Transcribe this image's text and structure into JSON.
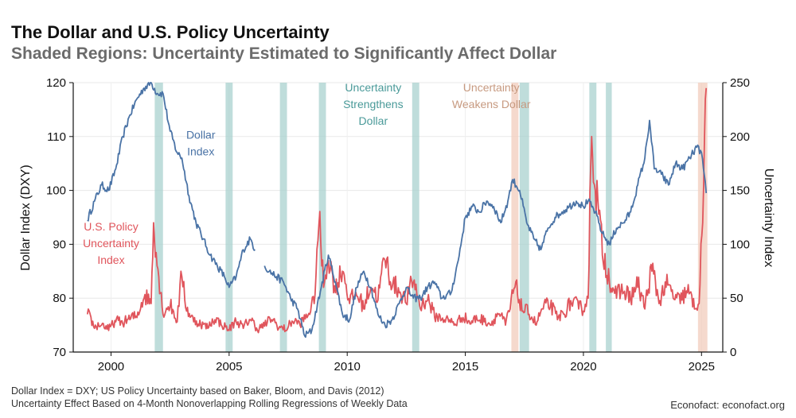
{
  "title": "The Dollar and U.S. Policy Uncertainty",
  "subtitle": "Shaded Regions: Uncertainty Estimated to Significantly Affect Dollar",
  "footnote_1": "Dollar Index = DXY; US Policy Uncertainty based on Baker, Bloom, and Davis (2012)",
  "footnote_2": "Uncertainty Effect Based on 4-Month Nonoverlapping Rolling Regressions of Weekly Data",
  "credit": "Econofact: econofact.org",
  "colors": {
    "dollar": "#4a73a6",
    "uncertainty": "#e0555c",
    "strengthens": "#a9d2cf",
    "weakens": "#f2cfc0",
    "annotation_strengthens": "#4a9a99",
    "annotation_weakens": "#c79a80"
  },
  "chart_data": {
    "type": "line",
    "xlim": [
      1998.4,
      2025.9
    ],
    "x_ticks": [
      2000,
      2005,
      2010,
      2015,
      2020,
      2025
    ],
    "x_tick_labels": [
      "2000",
      "2005",
      "2010",
      "2015",
      "2020",
      "2025"
    ],
    "y_left": {
      "label": "Dollar Index (DXY)",
      "lim": [
        70,
        120
      ],
      "ticks": [
        70,
        80,
        90,
        100,
        110,
        120
      ]
    },
    "y_right": {
      "label": "Uncertainty Index",
      "lim": [
        0,
        250
      ],
      "ticks": [
        0,
        50,
        100,
        150,
        200,
        250
      ]
    },
    "annotations": [
      {
        "id": "dollar",
        "lines": [
          "Dollar",
          "Index"
        ],
        "color_key": "dollar",
        "x": 2003.8,
        "y_left": 109.6
      },
      {
        "id": "uncertainty",
        "lines": [
          "U.S. Policy",
          "Uncertainty",
          "Index"
        ],
        "color_key": "uncertainty",
        "x": 2000.0,
        "y_left": 92.6
      },
      {
        "id": "strengthens",
        "lines": [
          "Uncertainty",
          "Strengthens",
          "Dollar"
        ],
        "color_key": "annotation_strengthens",
        "x": 2011.1,
        "y_left": 118.4
      },
      {
        "id": "weakens",
        "lines": [
          "Uncertainty",
          "Weakens Dollar"
        ],
        "color_key": "annotation_weakens",
        "x": 2016.1,
        "y_left": 118.4
      }
    ],
    "shaded_regions": {
      "strengthens": [
        [
          2001.85,
          2002.2
        ],
        [
          2004.85,
          2005.15
        ],
        [
          2007.15,
          2007.45
        ],
        [
          2008.8,
          2009.1
        ],
        [
          2012.75,
          2013.05
        ],
        [
          2017.3,
          2017.7
        ],
        [
          2020.25,
          2020.55
        ],
        [
          2020.95,
          2021.2
        ]
      ],
      "weakens": [
        [
          2016.95,
          2017.25
        ],
        [
          2024.85,
          2025.25
        ]
      ]
    },
    "series": [
      {
        "name": "Dollar Index",
        "axis": "left",
        "color_key": "dollar",
        "x": [
          1999.0,
          1999.3,
          1999.6,
          1999.9,
          2000.2,
          2000.5,
          2000.8,
          2001.1,
          2001.4,
          2001.7,
          2001.95,
          2002.2,
          2002.5,
          2002.8,
          2003.0,
          2003.3,
          2003.6,
          2003.9,
          2004.2,
          2004.5,
          2004.8,
          2005.0,
          2005.3,
          2005.6,
          2005.9,
          2006.1,
          2006.3,
          2006.5,
          2006.7,
          2007.0,
          2007.3,
          2007.6,
          2007.9,
          2008.2,
          2008.5,
          2008.9,
          2009.2,
          2009.5,
          2009.8,
          2010.1,
          2010.4,
          2010.7,
          2011.0,
          2011.3,
          2011.6,
          2011.9,
          2012.2,
          2012.5,
          2012.8,
          2013.1,
          2013.4,
          2013.7,
          2014.0,
          2014.4,
          2014.7,
          2015.0,
          2015.3,
          2015.6,
          2015.9,
          2016.2,
          2016.5,
          2016.8,
          2017.0,
          2017.3,
          2017.6,
          2017.9,
          2018.2,
          2018.5,
          2018.8,
          2019.1,
          2019.4,
          2019.7,
          2020.0,
          2020.2,
          2020.5,
          2020.8,
          2021.1,
          2021.4,
          2021.7,
          2022.0,
          2022.3,
          2022.6,
          2022.8,
          2023.0,
          2023.3,
          2023.6,
          2023.9,
          2024.2,
          2024.5,
          2024.8,
          2025.0,
          2025.2
        ],
        "values": [
          94.5,
          98,
          101,
          100,
          104,
          110,
          114,
          117,
          119,
          120,
          118,
          118,
          111,
          107,
          106,
          99,
          94,
          91,
          88,
          86,
          84,
          82,
          84,
          89,
          91,
          89,
          null,
          86,
          85,
          84,
          83,
          80,
          78,
          73,
          74,
          82,
          88,
          83,
          77,
          76,
          82,
          85,
          82,
          77,
          75,
          76,
          79,
          82,
          80,
          80,
          82,
          83,
          80,
          81,
          87,
          95,
          97,
          96,
          98,
          97,
          94,
          98,
          102,
          100,
          94,
          91,
          89,
          93,
          95,
          96,
          97,
          98,
          97,
          98,
          96,
          92,
          90,
          93,
          94,
          96,
          101,
          106,
          113,
          104,
          103,
          101,
          105,
          104,
          106,
          108,
          107,
          99.5
        ]
      },
      {
        "name": "U.S. Policy Uncertainty Index",
        "axis": "right",
        "color_key": "uncertainty",
        "x": [
          1999.0,
          1999.3,
          1999.6,
          1999.9,
          2000.2,
          2000.5,
          2000.8,
          2001.1,
          2001.4,
          2001.7,
          2001.8,
          2001.95,
          2002.2,
          2002.5,
          2002.8,
          2003.0,
          2003.2,
          2003.5,
          2003.8,
          2004.1,
          2004.4,
          2004.7,
          2005.0,
          2005.3,
          2005.6,
          2005.9,
          2006.2,
          2006.5,
          2006.8,
          2007.1,
          2007.4,
          2007.7,
          2008.0,
          2008.3,
          2008.6,
          2008.8,
          2009.0,
          2009.2,
          2009.5,
          2009.8,
          2010.1,
          2010.4,
          2010.7,
          2011.0,
          2011.3,
          2011.6,
          2011.9,
          2012.2,
          2012.5,
          2012.8,
          2013.1,
          2013.4,
          2013.7,
          2014.0,
          2014.3,
          2014.6,
          2014.9,
          2015.2,
          2015.5,
          2015.8,
          2016.1,
          2016.4,
          2016.7,
          2016.9,
          2017.1,
          2017.4,
          2017.7,
          2018.0,
          2018.3,
          2018.6,
          2018.9,
          2019.2,
          2019.5,
          2019.8,
          2020.0,
          2020.2,
          2020.35,
          2020.5,
          2020.8,
          2021.1,
          2021.4,
          2021.7,
          2022.0,
          2022.3,
          2022.6,
          2022.9,
          2023.2,
          2023.5,
          2023.8,
          2024.1,
          2024.4,
          2024.7,
          2024.9,
          2025.05,
          2025.2
        ],
        "values": [
          35,
          22,
          25,
          20,
          28,
          26,
          30,
          32,
          50,
          45,
          120,
          80,
          35,
          42,
          28,
          70,
          38,
          28,
          25,
          22,
          30,
          24,
          20,
          28,
          22,
          30,
          20,
          24,
          30,
          22,
          20,
          28,
          25,
          32,
          45,
          118,
          60,
          85,
          55,
          75,
          45,
          52,
          40,
          60,
          48,
          85,
          60,
          55,
          45,
          65,
          40,
          48,
          32,
          30,
          28,
          25,
          32,
          26,
          30,
          28,
          25,
          35,
          25,
          40,
          60,
          38,
          35,
          25,
          40,
          42,
          30,
          35,
          45,
          40,
          38,
          50,
          200,
          150,
          90,
          65,
          50,
          55,
          48,
          60,
          40,
          75,
          45,
          60,
          50,
          45,
          55,
          40,
          45,
          120,
          245
        ]
      }
    ]
  }
}
